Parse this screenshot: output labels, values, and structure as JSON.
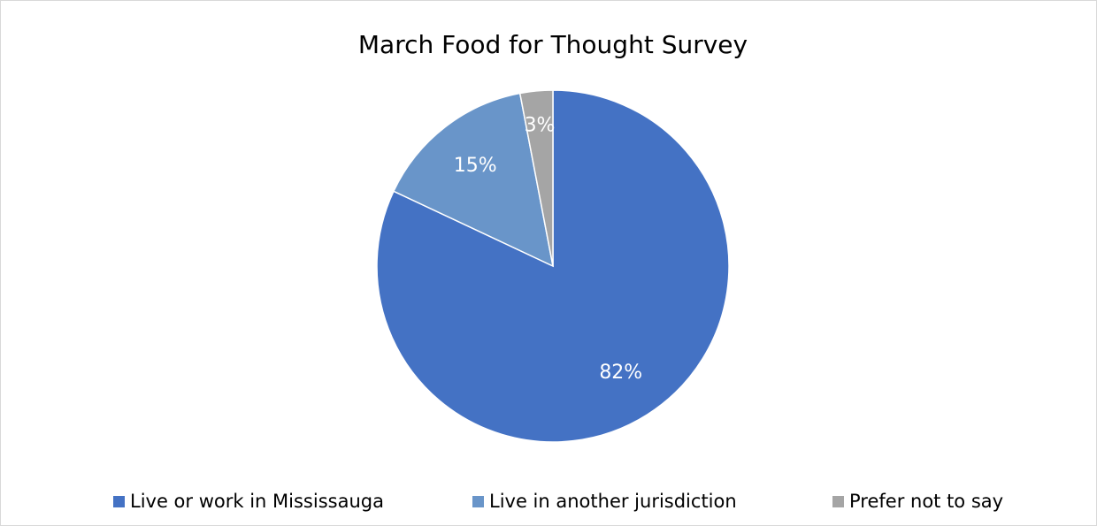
{
  "chart_data": {
    "type": "pie",
    "title": "March Food for Thought Survey",
    "categories": [
      "Live or work in Mississauga",
      "Live in another jurisdiction",
      "Prefer not to say"
    ],
    "values": [
      82,
      15,
      3
    ],
    "value_labels": [
      "82%",
      "15%",
      "3%"
    ],
    "colors": [
      "#4472c4",
      "#6995c9",
      "#a5a5a5"
    ],
    "legend": "bottom"
  }
}
